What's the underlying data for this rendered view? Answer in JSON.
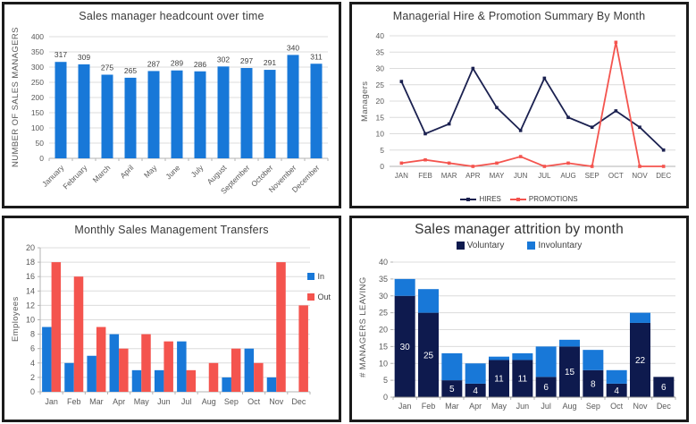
{
  "page": {
    "background": "#ffffff",
    "panel_border_color": "#1b1b1b",
    "grid_color": "#dcdcdc",
    "axis_color": "#b3b3b3",
    "tick_text_color": "#595959",
    "title_color": "#3a3a3a"
  },
  "chart_data": [
    {
      "id": "headcount",
      "type": "bar",
      "title": "Sales manager headcount over time",
      "ylabel": "NUMBER OF SALES MANAGERS",
      "categories": [
        "January",
        "February",
        "March",
        "April",
        "May",
        "June",
        "July",
        "August",
        "September",
        "October",
        "November",
        "December"
      ],
      "values": [
        317,
        309,
        275,
        265,
        287,
        289,
        286,
        302,
        297,
        291,
        340,
        311
      ],
      "ylim": [
        0,
        400
      ],
      "ytick_step": 50,
      "bar_color": "#1878d8",
      "data_label_color": "#404040",
      "grid": true,
      "show_data_labels": true
    },
    {
      "id": "hire-promotion",
      "type": "line",
      "title": "Managerial Hire & Promotion Summary By Month",
      "ylabel": "Managers",
      "categories": [
        "JAN",
        "FEB",
        "MAR",
        "APR",
        "MAY",
        "JUN",
        "JUL",
        "AUG",
        "SEP",
        "OCT",
        "NOV",
        "DEC"
      ],
      "series": [
        {
          "name": "HIRES",
          "color": "#1b2150",
          "values": [
            26,
            10,
            13,
            30,
            18,
            11,
            27,
            15,
            12,
            17,
            12,
            5
          ]
        },
        {
          "name": "PROMOTIONS",
          "color": "#f4544e",
          "values": [
            1,
            2,
            1,
            0,
            1,
            3,
            0,
            1,
            0,
            38,
            0,
            0
          ]
        }
      ],
      "ylim": [
        0,
        40
      ],
      "ytick_step": 5,
      "grid": true,
      "legend_position": "bottom"
    },
    {
      "id": "transfers",
      "type": "grouped-bar",
      "title": "Monthly Sales Management Transfers",
      "ylabel": "Employees",
      "categories": [
        "Jan",
        "Feb",
        "Mar",
        "Apr",
        "May",
        "Jun",
        "Jul",
        "Aug",
        "Sep",
        "Oct",
        "Nov",
        "Dec"
      ],
      "series": [
        {
          "name": "In",
          "color": "#1878d8",
          "values": [
            9,
            4,
            5,
            8,
            3,
            3,
            7,
            0,
            2,
            6,
            2,
            0
          ]
        },
        {
          "name": "Out",
          "color": "#f4544e",
          "values": [
            18,
            16,
            9,
            6,
            8,
            7,
            3,
            4,
            6,
            4,
            18,
            12
          ]
        }
      ],
      "ylim": [
        0,
        20
      ],
      "ytick_step": 2,
      "grid": true,
      "legend_position": "right"
    },
    {
      "id": "attrition",
      "type": "stacked-bar",
      "title": "Sales manager attrition by month",
      "ylabel": "# MANAGERS LEAVING",
      "categories": [
        "Jan",
        "Feb",
        "Mar",
        "Apr",
        "May",
        "Jun",
        "Jul",
        "Aug",
        "Sep",
        "Oct",
        "Nov",
        "Dec"
      ],
      "series": [
        {
          "name": "Voluntary",
          "color": "#0e1a4e",
          "values": [
            30,
            25,
            5,
            4,
            11,
            11,
            6,
            15,
            8,
            4,
            22,
            6
          ],
          "segment_labels": true,
          "segment_label_color": "#ffffff"
        },
        {
          "name": "Involuntary",
          "color": "#1878d8",
          "values": [
            5,
            7,
            8,
            6,
            1,
            2,
            9,
            2,
            6,
            4,
            3,
            0
          ]
        }
      ],
      "totals": [
        35,
        32,
        13,
        10,
        12,
        13,
        15,
        17,
        14,
        8,
        25,
        6
      ],
      "ylim": [
        0,
        40
      ],
      "ytick_step": 5,
      "grid": true,
      "legend_position": "top"
    }
  ]
}
